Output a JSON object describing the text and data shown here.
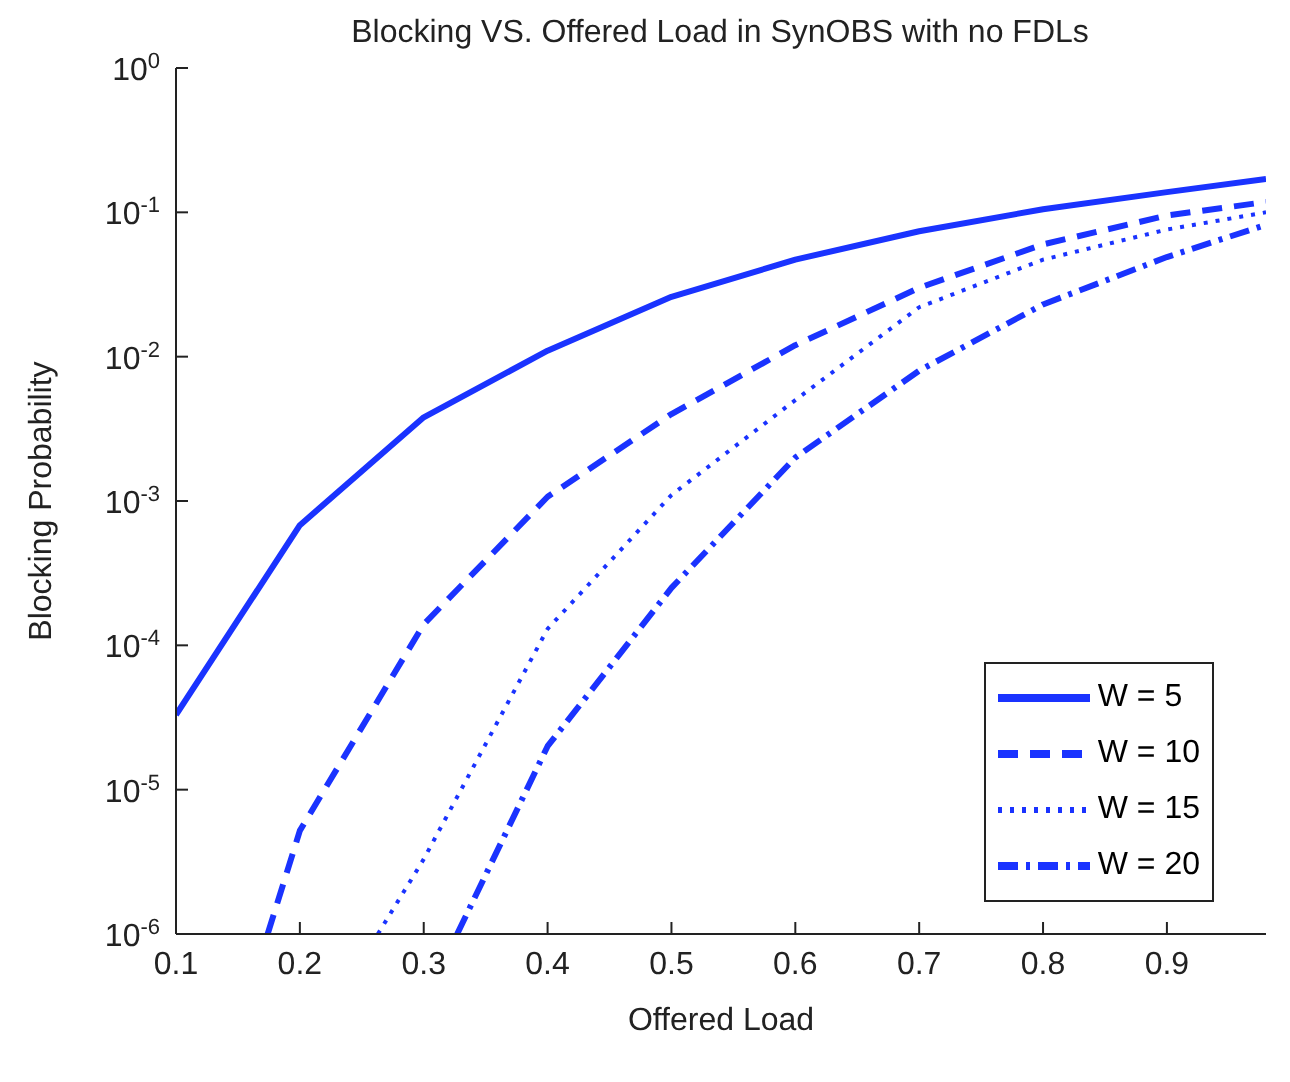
{
  "chart_data": {
    "type": "line",
    "title": "Blocking VS. Offered Load in SynOBS with no FDLs",
    "xlabel": "Offered Load",
    "ylabel": "Blocking Probability",
    "log": "y",
    "xlim": [
      0.1,
      0.98
    ],
    "xticks": [
      0.1,
      0.2,
      0.3,
      0.4,
      0.5,
      0.6,
      0.7,
      0.8,
      0.9
    ],
    "ylim": [
      1e-06,
      1
    ],
    "yticks": [
      {
        "value": 1e-06,
        "label": "10$^{-6}$"
      },
      {
        "value": 1e-05,
        "label": "10$^{-5}$"
      },
      {
        "value": 0.0001,
        "label": "10$^{-4}$"
      },
      {
        "value": 0.001,
        "label": "10$^{-3}$"
      },
      {
        "value": 0.01,
        "label": "10$^{-2}$"
      },
      {
        "value": 0.1,
        "label": "10$^{-1}$"
      },
      {
        "value": 1,
        "label": "10$^{0}$"
      }
    ],
    "legend": "bottom right",
    "marker": "none",
    "series": [
      {
        "name": "W = 5",
        "color": "#1a33ff",
        "line_style": "solid",
        "x": [
          0.1,
          0.2,
          0.3,
          0.4,
          0.5,
          0.6,
          0.7,
          0.8,
          0.9,
          0.98
        ],
        "values": [
          3.3e-05,
          0.00068,
          0.0038,
          0.011,
          0.026,
          0.047,
          0.074,
          0.105,
          0.138,
          0.17
        ]
      },
      {
        "name": "W = 10",
        "color": "#1a33ff",
        "line_style": "dashed",
        "x": [
          0.174,
          0.2,
          0.3,
          0.4,
          0.5,
          0.6,
          0.7,
          0.8,
          0.9,
          0.98
        ],
        "values": [
          1e-06,
          5.2e-06,
          0.00014,
          0.00107,
          0.004,
          0.012,
          0.03,
          0.06,
          0.095,
          0.118
        ]
      },
      {
        "name": "W = 15",
        "color": "#1a33ff",
        "line_style": "dotted",
        "x": [
          0.263,
          0.3,
          0.4,
          0.5,
          0.6,
          0.7,
          0.8,
          0.9,
          0.98
        ],
        "values": [
          1e-06,
          3.3e-06,
          0.00013,
          0.0011,
          0.005,
          0.022,
          0.047,
          0.076,
          0.1
        ]
      },
      {
        "name": "W = 20",
        "color": "#1a33ff",
        "line_style": "dashdot",
        "x": [
          0.327,
          0.4,
          0.5,
          0.6,
          0.7,
          0.8,
          0.9,
          0.98
        ],
        "values": [
          1e-06,
          2e-05,
          0.00025,
          0.002,
          0.008,
          0.023,
          0.049,
          0.082
        ]
      }
    ]
  }
}
